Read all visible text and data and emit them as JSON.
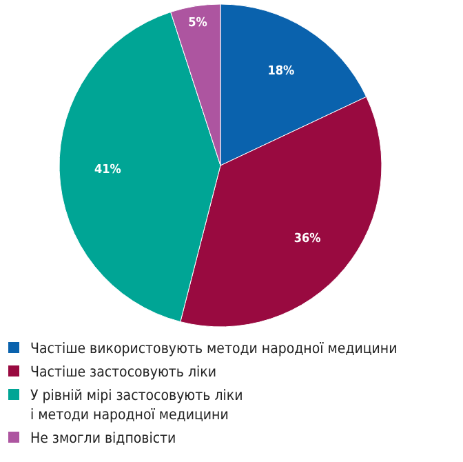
{
  "chart_data": {
    "type": "pie",
    "categories": [
      "Частіше використовують методи народної медицини",
      "Частіше застосовують ліки",
      "У рівній мірі застосовують ліки\nі методи народної медицини",
      "Не змогли відповісти"
    ],
    "values": [
      18,
      36,
      41,
      5
    ],
    "colors": [
      "#0a62ad",
      "#990a40",
      "#00a595",
      "#ad55a0"
    ],
    "value_labels": [
      "18%",
      "36%",
      "41%",
      "5%"
    ],
    "legend": "bottom"
  }
}
